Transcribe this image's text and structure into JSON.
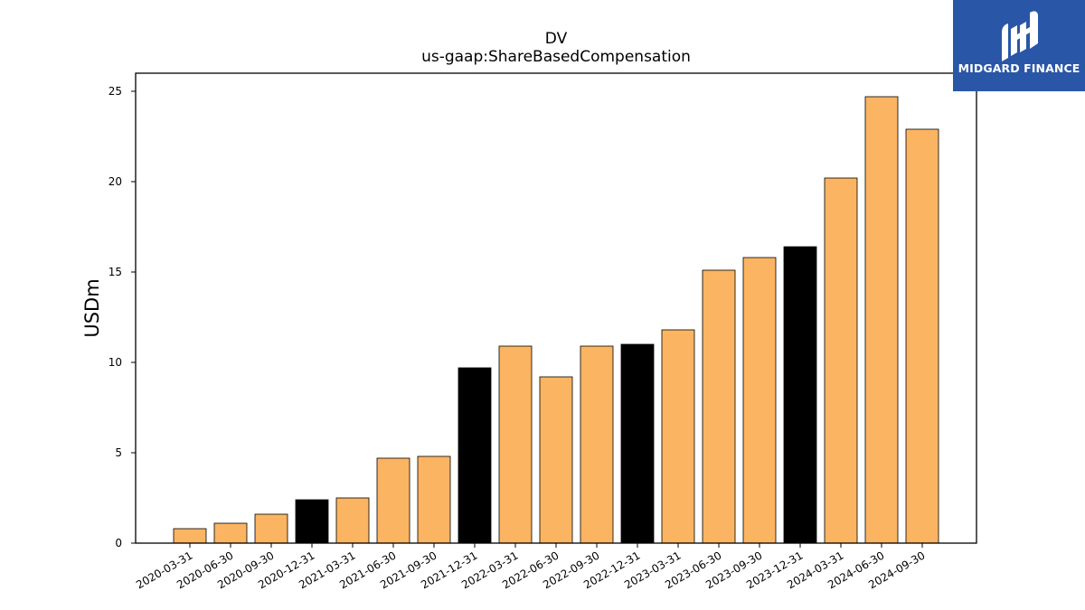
{
  "logo": {
    "text": "MIDGARD FINANCE",
    "background": "#2a56a8"
  },
  "chart_data": {
    "type": "bar",
    "title": "DV",
    "subtitle": "us-gaap:ShareBasedCompensation",
    "xlabel": "",
    "ylabel": "USDm",
    "ylim": [
      0,
      26
    ],
    "yticks": [
      0,
      5,
      10,
      15,
      20,
      25
    ],
    "grid": false,
    "categories": [
      "2020-03-31",
      "2020-06-30",
      "2020-09-30",
      "2020-12-31",
      "2021-03-31",
      "2021-06-30",
      "2021-09-30",
      "2021-12-31",
      "2022-03-31",
      "2022-06-30",
      "2022-09-30",
      "2022-12-31",
      "2023-03-31",
      "2023-06-30",
      "2023-09-30",
      "2023-12-31",
      "2024-03-31",
      "2024-06-30",
      "2024-09-30"
    ],
    "values": [
      0.8,
      1.1,
      1.6,
      2.4,
      2.5,
      4.7,
      4.8,
      9.7,
      10.9,
      9.2,
      10.9,
      11.0,
      11.8,
      15.1,
      15.8,
      16.4,
      20.2,
      24.7,
      22.9
    ],
    "bar_colors": [
      "#fbb462",
      "#fbb462",
      "#fbb462",
      "#000000",
      "#fbb462",
      "#fbb462",
      "#fbb462",
      "#000000",
      "#fbb462",
      "#fbb462",
      "#fbb462",
      "#000000",
      "#fbb462",
      "#fbb462",
      "#fbb462",
      "#000000",
      "#fbb462",
      "#fbb462",
      "#fbb462"
    ]
  }
}
